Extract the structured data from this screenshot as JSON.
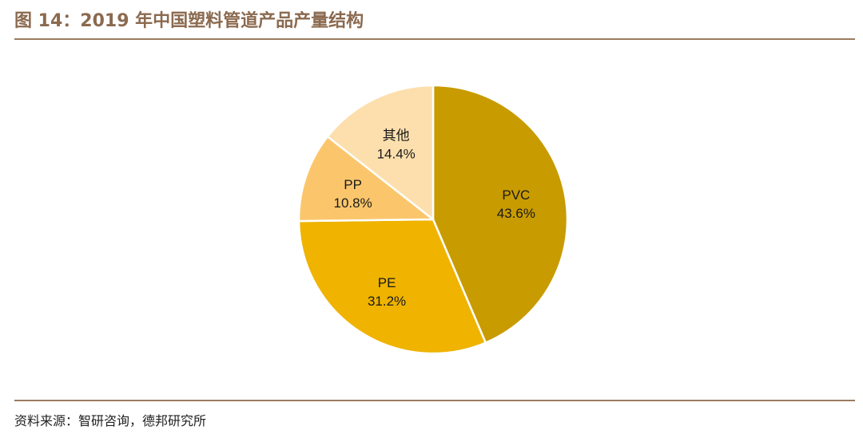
{
  "figure": {
    "title": "图 14：2019 年中国塑料管道产品产量结构",
    "source": "资料来源：智研咨询，德邦研究所"
  },
  "chart_data": {
    "type": "pie",
    "title": "",
    "categories": [
      "PVC",
      "PE",
      "PP",
      "其他"
    ],
    "values": [
      43.6,
      31.2,
      10.8,
      14.4
    ],
    "value_labels": [
      "43.6%",
      "31.2%",
      "10.8%",
      "14.4%"
    ],
    "unit": "%",
    "start": "12 o'clock",
    "direction": "clockwise",
    "colors": [
      "#C89B00",
      "#EFB300",
      "#FBC66B",
      "#FDDFAE"
    ],
    "legend": "none",
    "labels_inside": true
  }
}
